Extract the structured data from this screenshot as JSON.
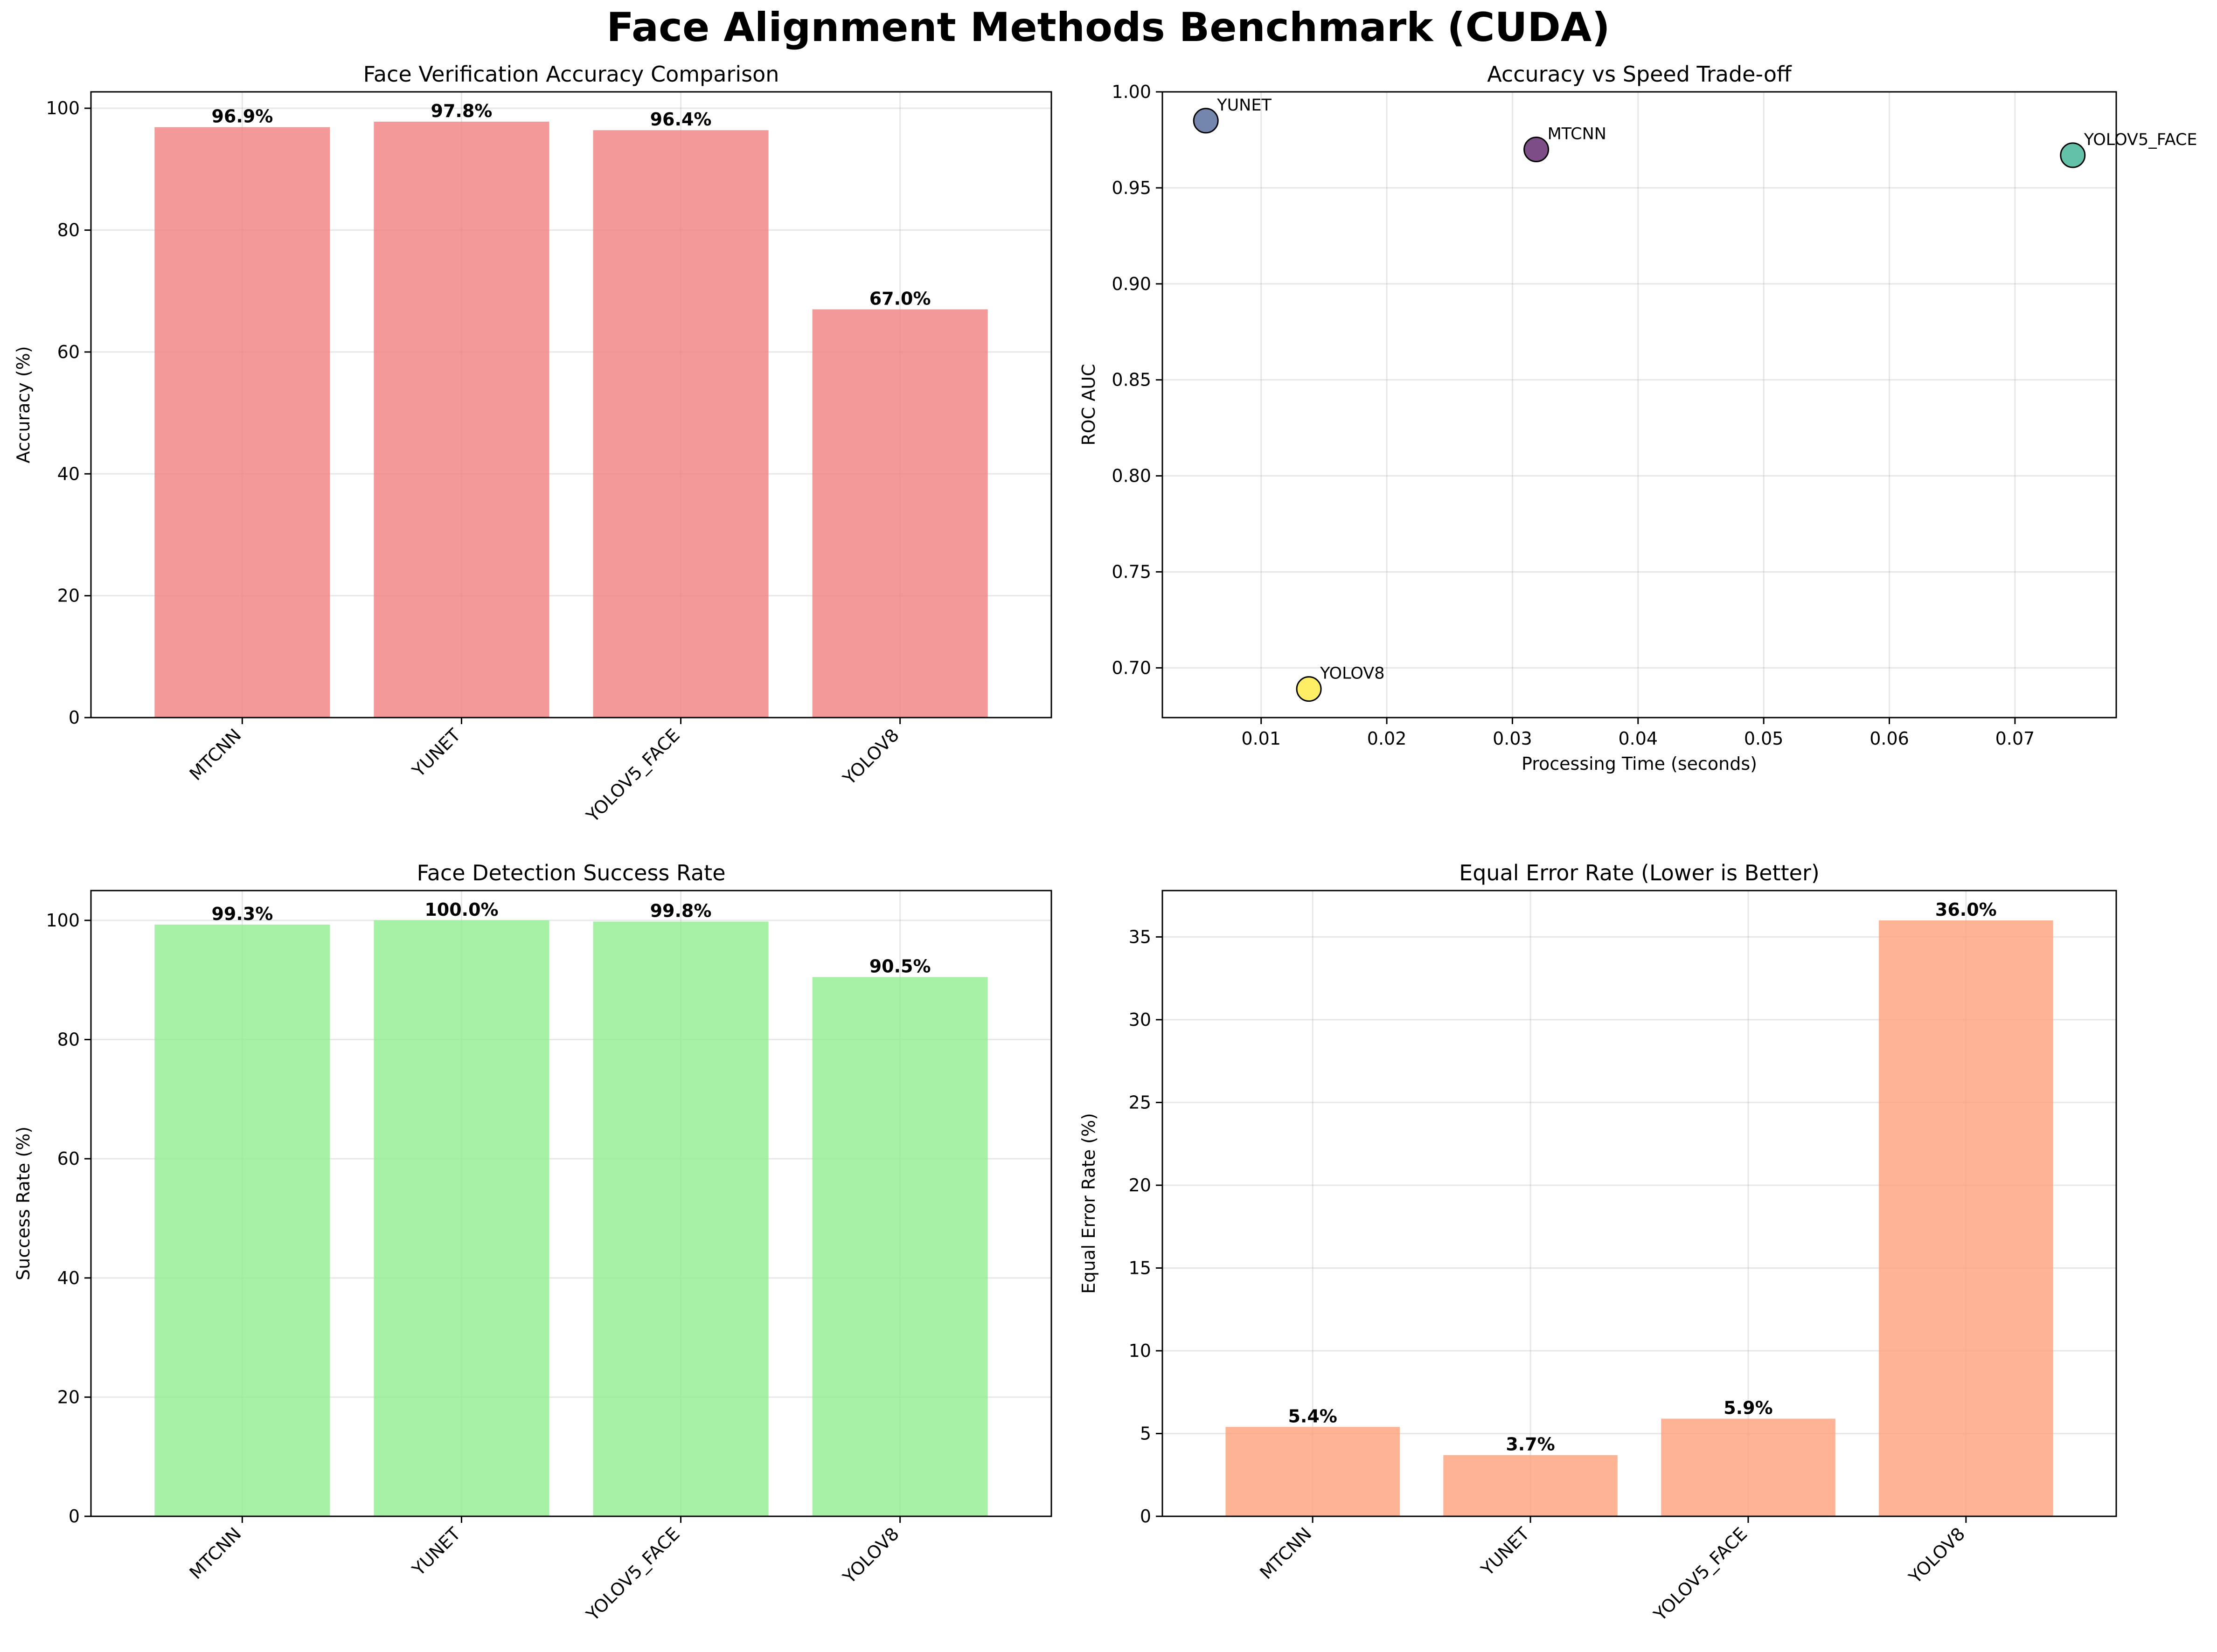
{
  "figure": {
    "title": "Face Alignment Methods Benchmark (CUDA)"
  },
  "chart_data": [
    {
      "id": "accuracy",
      "type": "bar",
      "title": "Face Verification Accuracy Comparison",
      "xlabel": "",
      "ylabel": "Accuracy (%)",
      "categories": [
        "MTCNN",
        "YUNET",
        "YOLOV5_FACE",
        "YOLOV8"
      ],
      "values": [
        96.9,
        97.8,
        96.4,
        67.0
      ],
      "value_labels": [
        "96.9%",
        "97.8%",
        "96.4%",
        "67.0%"
      ],
      "ylim": [
        0,
        102.69
      ],
      "yticks": [
        0,
        20,
        40,
        60,
        80,
        100
      ],
      "ytick_labels": [
        "0",
        "20",
        "40",
        "60",
        "80",
        "100"
      ],
      "color": "#f08080",
      "grid": true
    },
    {
      "id": "tradeoff",
      "type": "scatter",
      "title": "Accuracy vs Speed Trade-off",
      "xlabel": "Processing Time (seconds)",
      "ylabel": "ROC AUC",
      "points": [
        {
          "label": "MTCNN",
          "x": 0.0319,
          "y": 0.97,
          "color": "#440154"
        },
        {
          "label": "YUNET",
          "x": 0.0056,
          "y": 0.985,
          "color": "#3b528b"
        },
        {
          "label": "YOLOV5_FACE",
          "x": 0.0746,
          "y": 0.967,
          "color": "#21a784"
        },
        {
          "label": "YOLOV8",
          "x": 0.0138,
          "y": 0.689,
          "color": "#fde725"
        }
      ],
      "xlim": [
        0.00214,
        0.07806
      ],
      "ylim": [
        0.6741,
        1.0
      ],
      "xticks": [
        0.01,
        0.02,
        0.03,
        0.04,
        0.05,
        0.06,
        0.07
      ],
      "xtick_labels": [
        "0.01",
        "0.02",
        "0.03",
        "0.04",
        "0.05",
        "0.06",
        "0.07"
      ],
      "yticks": [
        0.7,
        0.75,
        0.8,
        0.85,
        0.9,
        0.95,
        1.0
      ],
      "ytick_labels": [
        "0.70",
        "0.75",
        "0.80",
        "0.85",
        "0.90",
        "0.95",
        "1.00"
      ],
      "grid": true
    },
    {
      "id": "detection",
      "type": "bar",
      "title": "Face Detection Success Rate",
      "xlabel": "",
      "ylabel": "Success Rate (%)",
      "categories": [
        "MTCNN",
        "YUNET",
        "YOLOV5_FACE",
        "YOLOV8"
      ],
      "values": [
        99.3,
        100.0,
        99.8,
        90.5
      ],
      "value_labels": [
        "99.3%",
        "100.0%",
        "99.8%",
        "90.5%"
      ],
      "ylim": [
        0,
        105
      ],
      "yticks": [
        0,
        20,
        40,
        60,
        80,
        100
      ],
      "ytick_labels": [
        "0",
        "20",
        "40",
        "60",
        "80",
        "100"
      ],
      "color": "#90ee90",
      "grid": true
    },
    {
      "id": "eer",
      "type": "bar",
      "title": "Equal Error Rate (Lower is Better)",
      "xlabel": "",
      "ylabel": "Equal Error Rate (%)",
      "categories": [
        "MTCNN",
        "YUNET",
        "YOLOV5_FACE",
        "YOLOV8"
      ],
      "values": [
        5.4,
        3.7,
        5.9,
        36.0
      ],
      "value_labels": [
        "5.4%",
        "3.7%",
        "5.9%",
        "36.0%"
      ],
      "ylim": [
        0,
        37.8
      ],
      "yticks": [
        0,
        5,
        10,
        15,
        20,
        25,
        30,
        35
      ],
      "ytick_labels": [
        "0",
        "5",
        "10",
        "15",
        "20",
        "25",
        "30",
        "35"
      ],
      "color": "#ffa07a",
      "grid": true
    }
  ]
}
